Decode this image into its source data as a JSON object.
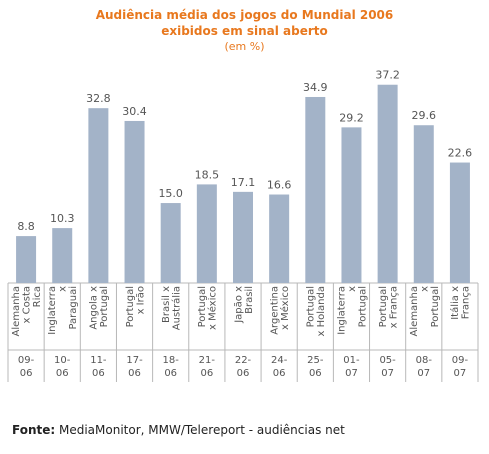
{
  "chart_data": {
    "type": "bar",
    "title_line1": "Audiência média dos jogos do Mundial 2006",
    "title_line2": "exibidos em sinal aberto",
    "subtitle": "(em %)",
    "categories": [
      {
        "match": [
          "Alemanha",
          "x Costa",
          "Rica"
        ],
        "date": [
          "09-",
          "06"
        ]
      },
      {
        "match": [
          "Inglaterra",
          "x",
          "Paraguai"
        ],
        "date": [
          "10-",
          "06"
        ]
      },
      {
        "match": [
          "Angola x",
          "Portugal"
        ],
        "date": [
          "11-",
          "06"
        ]
      },
      {
        "match": [
          "Portugal",
          "x Irão"
        ],
        "date": [
          "17-",
          "06"
        ]
      },
      {
        "match": [
          "Brasil x",
          "Austrália"
        ],
        "date": [
          "18-",
          "06"
        ]
      },
      {
        "match": [
          "Portugal",
          "x México"
        ],
        "date": [
          "21-",
          "06"
        ]
      },
      {
        "match": [
          "Japão x",
          "Brasil"
        ],
        "date": [
          "22-",
          "06"
        ]
      },
      {
        "match": [
          "Argentina",
          "x México"
        ],
        "date": [
          "24-",
          "06"
        ]
      },
      {
        "match": [
          "Portugal",
          "x Holanda"
        ],
        "date": [
          "25-",
          "06"
        ]
      },
      {
        "match": [
          "Inglaterra",
          "x",
          "Portugal"
        ],
        "date": [
          "01-",
          "07"
        ]
      },
      {
        "match": [
          "Portugal",
          "x França"
        ],
        "date": [
          "05-",
          "07"
        ]
      },
      {
        "match": [
          "Alemanha",
          "x",
          "Portugal"
        ],
        "date": [
          "08-",
          "07"
        ]
      },
      {
        "match": [
          "Itália x",
          "França"
        ],
        "date": [
          "09-",
          "07"
        ]
      }
    ],
    "values": [
      8.8,
      10.3,
      32.8,
      30.4,
      15.0,
      18.5,
      17.1,
      16.6,
      34.9,
      29.2,
      37.2,
      29.6,
      22.6
    ],
    "value_labels": [
      "8.8",
      "10.3",
      "32.8",
      "30.4",
      "15.0",
      "18.5",
      "17.1",
      "16.6",
      "34.9",
      "29.2",
      "37.2",
      "29.6",
      "22.6"
    ],
    "ylim": [
      0,
      40
    ],
    "grid": false,
    "colors": {
      "bar": "#a3b3c8",
      "title": "#e8781e",
      "axis": "#b8b8b8",
      "text": "#555555"
    }
  },
  "footer": {
    "label": "Fonte:",
    "text": " MediaMonitor, MMW/Telereport - audiências net"
  }
}
